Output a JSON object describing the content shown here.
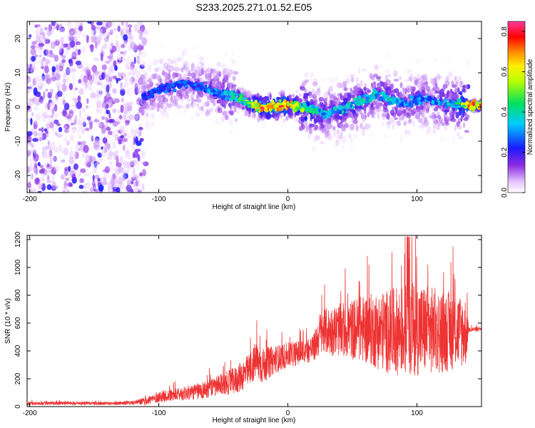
{
  "title": "S233.2025.271.01.52.E05",
  "chart_data": [
    {
      "type": "heatmap",
      "xlabel": "Height of straight line (km)",
      "ylabel": "Frequency (Hz)",
      "xlim": [
        -202,
        150
      ],
      "ylim": [
        -25,
        25
      ],
      "x_ticks": [
        -200,
        -100,
        0,
        100
      ],
      "y_ticks": [
        -20,
        -10,
        0,
        10,
        20
      ],
      "colorbar": {
        "label": "Normalized spectral amplitude",
        "range": [
          0.0,
          0.85
        ],
        "ticks": [
          0.0,
          0.2,
          0.4,
          0.6,
          0.8
        ],
        "colormap": "rainbow (white-purple-blue-cyan-green-yellow-red-magenta)"
      },
      "ridge": {
        "x": [
          -110,
          -100,
          -90,
          -80,
          -70,
          -60,
          -50,
          -40,
          -30,
          -20,
          -10,
          0,
          10,
          20,
          30,
          40,
          50,
          60,
          70,
          80,
          90,
          100,
          110,
          120,
          130,
          140,
          150
        ],
        "freq": [
          3,
          5,
          6,
          7,
          6,
          5,
          4,
          3,
          1,
          0,
          0,
          0.5,
          0,
          -1,
          -2,
          -1,
          1,
          2,
          4,
          2,
          1,
          2,
          2,
          1,
          1,
          0.5,
          0.5
        ],
        "peak_amplitude": [
          0.25,
          0.3,
          0.3,
          0.3,
          0.3,
          0.35,
          0.4,
          0.45,
          0.6,
          0.85,
          0.85,
          0.8,
          0.6,
          0.45,
          0.4,
          0.4,
          0.45,
          0.45,
          0.4,
          0.4,
          0.35,
          0.35,
          0.35,
          0.4,
          0.45,
          0.75,
          0.75
        ]
      }
    },
    {
      "type": "line",
      "xlabel": "Height of straight line (km)",
      "ylabel": "SNR (10 * v/v)",
      "xlim": [
        -202,
        150
      ],
      "ylim": [
        0,
        1230
      ],
      "x_ticks": [
        -200,
        -100,
        0,
        100
      ],
      "y_ticks": [
        0,
        200,
        400,
        600,
        800,
        1000,
        1200
      ],
      "series": [
        {
          "color": "#ee3333",
          "x": [
            -202,
            -180,
            -160,
            -140,
            -120,
            -110,
            -100,
            -90,
            -80,
            -70,
            -60,
            -50,
            -40,
            -30,
            -25,
            -20,
            -10,
            0,
            10,
            20,
            25,
            30,
            40,
            50,
            60,
            70,
            80,
            90,
            100,
            110,
            120,
            130,
            138,
            140,
            150
          ],
          "values": [
            22,
            25,
            25,
            22,
            28,
            40,
            70,
            80,
            95,
            110,
            130,
            160,
            190,
            260,
            330,
            290,
            340,
            370,
            390,
            420,
            530,
            540,
            550,
            555,
            560,
            545,
            540,
            550,
            560,
            550,
            540,
            545,
            540,
            555,
            555
          ],
          "noise_amplitude": [
            12,
            12,
            12,
            12,
            14,
            30,
            40,
            45,
            50,
            60,
            70,
            80,
            100,
            120,
            140,
            130,
            100,
            90,
            90,
            100,
            160,
            170,
            190,
            220,
            250,
            280,
            310,
            330,
            340,
            320,
            300,
            280,
            250,
            20,
            15
          ]
        }
      ]
    }
  ]
}
